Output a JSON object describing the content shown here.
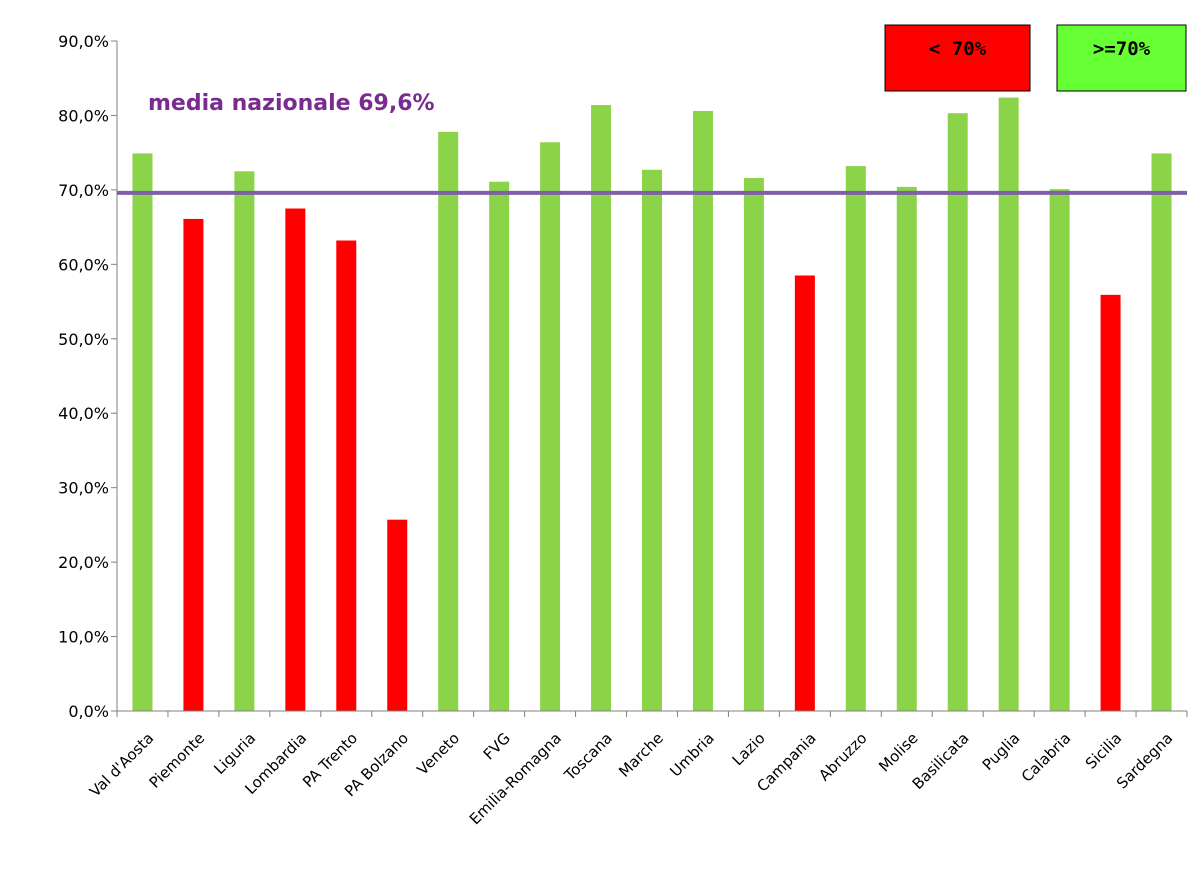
{
  "chart_data": {
    "type": "bar",
    "categories": [
      "Val d'Aosta",
      "Piemonte",
      "Liguria",
      "Lombardia",
      "PA Trento",
      "PA Bolzano",
      "Veneto",
      "FVG",
      "Emilia-Romagna",
      "Toscana",
      "Marche",
      "Umbria",
      "Lazio",
      "Campania",
      "Abruzzo",
      "Molise",
      "Basilicata",
      "Puglia",
      "Calabria",
      "Sicilia",
      "Sardegna"
    ],
    "values": [
      74.9,
      66.1,
      72.5,
      67.5,
      63.2,
      25.7,
      77.8,
      71.1,
      76.4,
      81.4,
      72.7,
      80.6,
      71.6,
      58.5,
      73.2,
      70.4,
      80.3,
      82.4,
      70.1,
      55.9,
      74.9
    ],
    "ylim": [
      0,
      90
    ],
    "yticks": [
      0,
      10,
      20,
      30,
      40,
      50,
      60,
      70,
      80,
      90
    ],
    "ytick_labels": [
      "0,0%",
      "10,0%",
      "20,0%",
      "30,0%",
      "40,0%",
      "50,0%",
      "60,0%",
      "70,0%",
      "80,0%",
      "90,0%"
    ],
    "threshold": 70,
    "reference_line": {
      "value": 69.6,
      "label": "media nazionale 69,6%",
      "color": "#7f5fa8"
    },
    "legend": [
      {
        "label": "< 70%",
        "color": "#ff0000"
      },
      {
        "label": ">=70%",
        "color": "#66ff33"
      }
    ],
    "colors": {
      "below": "#ff0000",
      "above": "#8bd44a"
    },
    "title": "",
    "xlabel": "",
    "ylabel": "",
    "grid": false,
    "legend_placement": "top-right"
  }
}
